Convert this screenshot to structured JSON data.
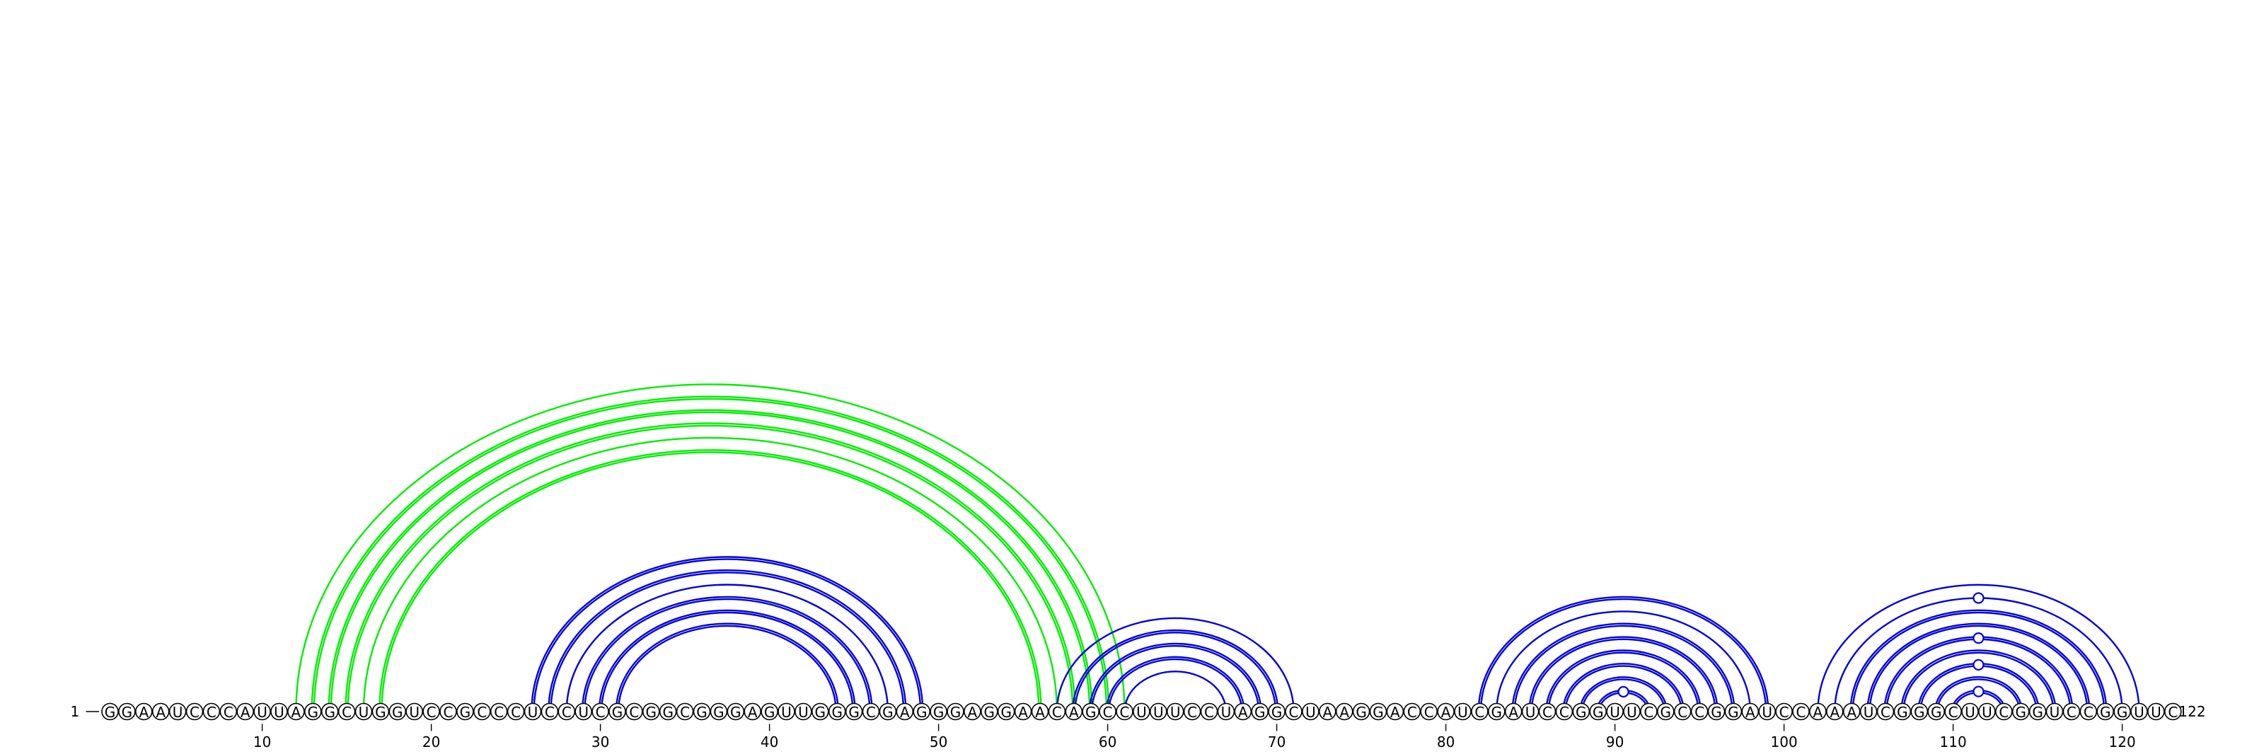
{
  "diagram": {
    "sequence": "GGAAUCCCAUUAGGCUGGUCCGCCCUCCUCGCGGCGGGAGUUGGGCGAGGGAGGAACAGCCUUUCCUAGGCUAAGGACCAUCGAUCCGGUUCGCCGGAUCCAAAUCGGGCUUCGGUCCGGUUC",
    "length": 122,
    "start_label": "1",
    "end_label": "122",
    "tick_positions": [
      10,
      20,
      30,
      40,
      50,
      60,
      70,
      80,
      90,
      100,
      110,
      120
    ],
    "tick_labels": [
      "10",
      "20",
      "30",
      "40",
      "50",
      "60",
      "70",
      "80",
      "90",
      "100",
      "110",
      "120"
    ],
    "colors": {
      "green_pairs": "#00ee00",
      "blue_pairs": "#0000dd"
    },
    "arcs": [
      {
        "i": 12,
        "j": 61,
        "color": "green",
        "style": "single"
      },
      {
        "i": 13,
        "j": 60,
        "color": "green",
        "style": "double"
      },
      {
        "i": 14,
        "j": 59,
        "color": "green",
        "style": "double"
      },
      {
        "i": 15,
        "j": 58,
        "color": "green",
        "style": "double"
      },
      {
        "i": 16,
        "j": 57,
        "color": "green",
        "style": "single"
      },
      {
        "i": 17,
        "j": 56,
        "color": "green",
        "style": "double"
      },
      {
        "i": 26,
        "j": 49,
        "color": "blue",
        "style": "double"
      },
      {
        "i": 27,
        "j": 48,
        "color": "blue",
        "style": "double"
      },
      {
        "i": 28,
        "j": 47,
        "color": "blue",
        "style": "single"
      },
      {
        "i": 29,
        "j": 46,
        "color": "blue",
        "style": "double"
      },
      {
        "i": 30,
        "j": 45,
        "color": "blue",
        "style": "double"
      },
      {
        "i": 31,
        "j": 44,
        "color": "blue",
        "style": "double"
      },
      {
        "i": 57,
        "j": 71,
        "color": "blue",
        "style": "single"
      },
      {
        "i": 58,
        "j": 70,
        "color": "blue",
        "style": "double"
      },
      {
        "i": 59,
        "j": 69,
        "color": "blue",
        "style": "double"
      },
      {
        "i": 60,
        "j": 68,
        "color": "blue",
        "style": "double"
      },
      {
        "i": 61,
        "j": 67,
        "color": "blue",
        "style": "single"
      },
      {
        "i": 82,
        "j": 99,
        "color": "blue",
        "style": "double"
      },
      {
        "i": 83,
        "j": 98,
        "color": "blue",
        "style": "single"
      },
      {
        "i": 84,
        "j": 97,
        "color": "blue",
        "style": "double"
      },
      {
        "i": 85,
        "j": 96,
        "color": "blue",
        "style": "double"
      },
      {
        "i": 86,
        "j": 95,
        "color": "blue",
        "style": "double"
      },
      {
        "i": 87,
        "j": 94,
        "color": "blue",
        "style": "double"
      },
      {
        "i": 88,
        "j": 93,
        "color": "blue",
        "style": "double"
      },
      {
        "i": 89,
        "j": 92,
        "color": "blue",
        "style": "double"
      },
      {
        "i": 102,
        "j": 121,
        "color": "blue",
        "style": "single"
      },
      {
        "i": 103,
        "j": 120,
        "color": "blue",
        "style": "single"
      },
      {
        "i": 104,
        "j": 119,
        "color": "blue",
        "style": "double"
      },
      {
        "i": 105,
        "j": 118,
        "color": "blue",
        "style": "double"
      },
      {
        "i": 106,
        "j": 117,
        "color": "blue",
        "style": "double"
      },
      {
        "i": 107,
        "j": 116,
        "color": "blue",
        "style": "double"
      },
      {
        "i": 108,
        "j": 115,
        "color": "blue",
        "style": "double"
      },
      {
        "i": 109,
        "j": 114,
        "color": "blue",
        "style": "double"
      },
      {
        "i": 110,
        "j": 113,
        "color": "blue",
        "style": "double"
      }
    ],
    "markers": [
      {
        "i": 90,
        "j": 91,
        "color": "blue"
      },
      {
        "i": 103,
        "j": 120,
        "color": "blue"
      },
      {
        "i": 106,
        "j": 117,
        "color": "blue"
      },
      {
        "i": 108,
        "j": 115,
        "color": "blue"
      },
      {
        "i": 110,
        "j": 113,
        "color": "blue"
      }
    ]
  }
}
